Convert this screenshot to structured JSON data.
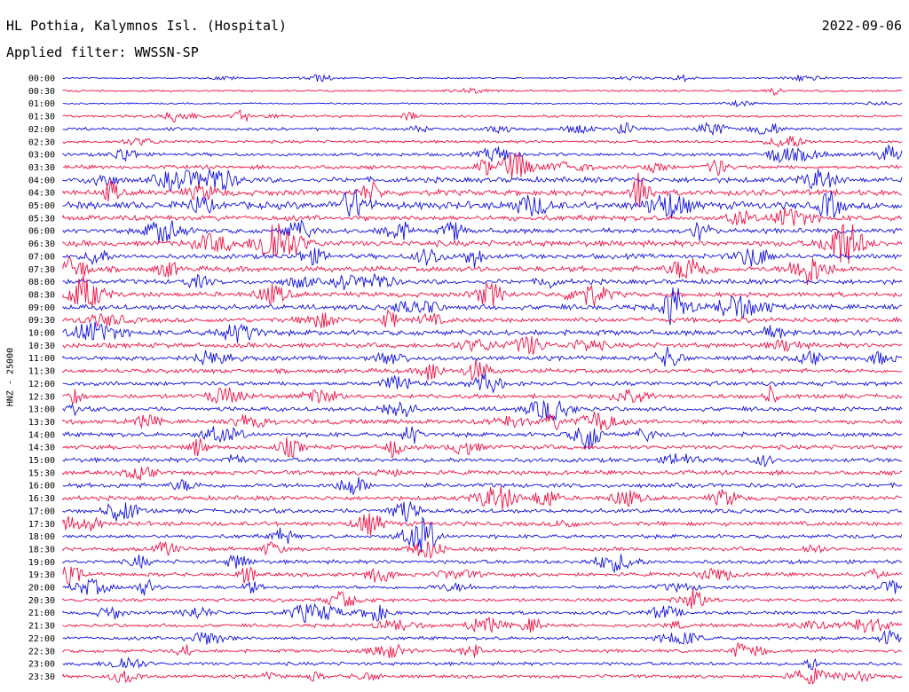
{
  "header": {
    "station": "HL Pothia, Kalymnos Isl. (Hospital)",
    "date": "2022-09-06",
    "filter_text": "Applied filter: WWSSN-SP"
  },
  "chart_data": {
    "type": "line",
    "title": "HL Pothia, Kalymnos Isl. (Hospital)",
    "ylabel": "HNZ - 25000",
    "xlabel": "",
    "grid": false,
    "rows": [
      "00:00",
      "00:30",
      "01:00",
      "01:30",
      "02:00",
      "02:30",
      "03:00",
      "03:30",
      "04:00",
      "04:30",
      "05:00",
      "05:30",
      "06:00",
      "06:30",
      "07:00",
      "07:30",
      "08:00",
      "08:30",
      "09:00",
      "09:30",
      "10:00",
      "10:30",
      "11:00",
      "11:30",
      "12:00",
      "12:30",
      "13:00",
      "13:30",
      "14:00",
      "14:30",
      "15:00",
      "15:30",
      "16:00",
      "16:30",
      "17:00",
      "17:30",
      "18:00",
      "18:30",
      "19:00",
      "19:30",
      "20:00",
      "20:30",
      "21:00",
      "21:30",
      "22:00",
      "22:30",
      "23:00",
      "23:30"
    ],
    "colors": [
      "#1010dd",
      "#ee1144"
    ],
    "amplitude": [
      0.15,
      0.2,
      0.15,
      0.25,
      0.3,
      0.3,
      0.35,
      0.4,
      0.55,
      0.6,
      0.75,
      0.55,
      0.5,
      0.6,
      0.5,
      0.55,
      0.5,
      0.5,
      0.55,
      0.5,
      0.55,
      0.5,
      0.45,
      0.45,
      0.45,
      0.45,
      0.45,
      0.45,
      0.45,
      0.45,
      0.45,
      0.45,
      0.45,
      0.45,
      0.45,
      0.45,
      0.4,
      0.4,
      0.4,
      0.4,
      0.35,
      0.35,
      0.35,
      0.35,
      0.35,
      0.35,
      0.35,
      0.35
    ]
  }
}
